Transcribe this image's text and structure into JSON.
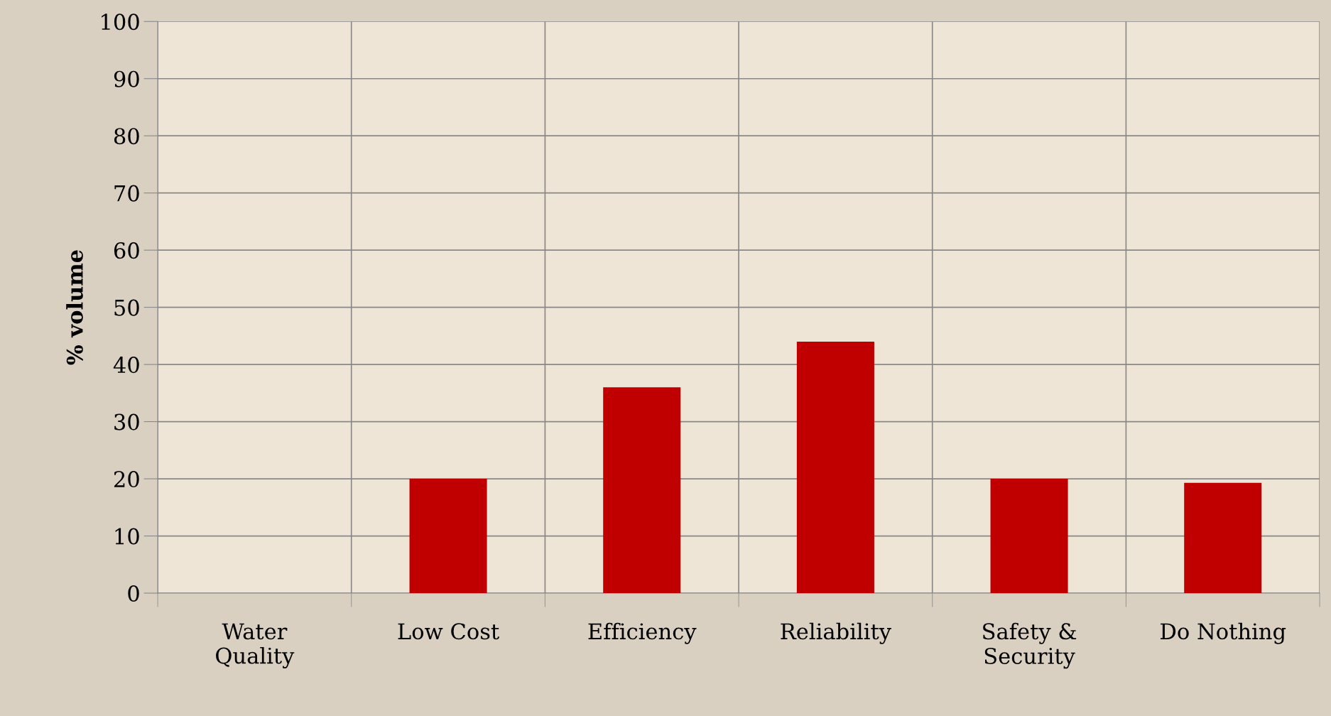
{
  "chart_data": {
    "type": "bar",
    "ylabel": "% volume",
    "categories": [
      "Water\nQuality",
      "Low Cost",
      "Efficiency",
      "Reliability",
      "Safety &\nSecurity",
      "Do Nothing"
    ],
    "values": [
      0,
      20,
      36,
      44,
      20,
      19.3
    ],
    "color": "#c00000",
    "ylim": [
      0,
      100
    ],
    "yticks": [
      0,
      10,
      20,
      30,
      40,
      50,
      60,
      70,
      80,
      90,
      100
    ],
    "grid": true
  }
}
